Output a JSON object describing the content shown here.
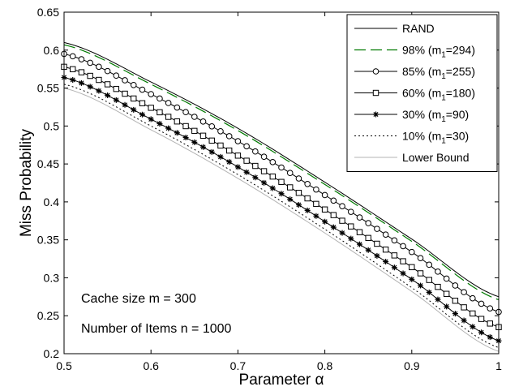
{
  "chart_data": {
    "type": "line",
    "xlabel": "Parameter α",
    "ylabel": "Miss Probability",
    "xlim": [
      0.5,
      1.0
    ],
    "ylim": [
      0.2,
      0.65
    ],
    "xticks": [
      "0.5",
      "0.6",
      "0.7",
      "0.8",
      "0.9",
      "1"
    ],
    "yticks": [
      "0.2",
      "0.25",
      "0.3",
      "0.35",
      "0.4",
      "0.45",
      "0.5",
      "0.55",
      "0.6",
      "0.65"
    ],
    "grid": false,
    "legend_position": "top-right",
    "annotations": [
      "Cache size m = 300",
      "Number of Items n = 1000"
    ],
    "x": [
      0.5,
      0.6,
      0.7,
      0.8,
      0.9,
      1.0
    ],
    "series": [
      {
        "name": "RAND",
        "values": [
          0.61,
          0.558,
          0.497,
          0.426,
          0.351,
          0.275
        ],
        "color": "#000000",
        "style": "solid",
        "marker": "none"
      },
      {
        "name": "98% (m1=294)",
        "legend_main": "98% (m",
        "legend_sub": "1",
        "legend_tail": "=294)",
        "values": [
          0.607,
          0.555,
          0.494,
          0.423,
          0.348,
          0.271
        ],
        "color": "#007a00",
        "style": "dashed",
        "marker": "none"
      },
      {
        "name": "85% (m1=255)",
        "legend_main": "85% (m",
        "legend_sub": "1",
        "legend_tail": "=255)",
        "values": [
          0.595,
          0.542,
          0.48,
          0.409,
          0.334,
          0.255
        ],
        "color": "#000000",
        "style": "solid",
        "marker": "circle"
      },
      {
        "name": "60% (m1=180)",
        "legend_main": "60% (m",
        "legend_sub": "1",
        "legend_tail": "=180)",
        "values": [
          0.578,
          0.524,
          0.461,
          0.39,
          0.314,
          0.235
        ],
        "color": "#000000",
        "style": "solid",
        "marker": "square"
      },
      {
        "name": "30% (m1=90)",
        "legend_main": "30% (m",
        "legend_sub": "1",
        "legend_tail": "=90)",
        "values": [
          0.564,
          0.509,
          0.446,
          0.374,
          0.298,
          0.217
        ],
        "color": "#000000",
        "style": "solid",
        "marker": "star"
      },
      {
        "name": "10% (m1=30)",
        "legend_main": "10% (m",
        "legend_sub": "1",
        "legend_tail": "=30)",
        "values": [
          0.555,
          0.5,
          0.436,
          0.364,
          0.287,
          0.208
        ],
        "color": "#000000",
        "style": "dotted",
        "marker": "none"
      },
      {
        "name": "Lower Bound",
        "values": [
          0.55,
          0.495,
          0.431,
          0.359,
          0.282,
          0.203
        ],
        "color": "#b3b3b3",
        "style": "solid",
        "marker": "none"
      }
    ]
  }
}
